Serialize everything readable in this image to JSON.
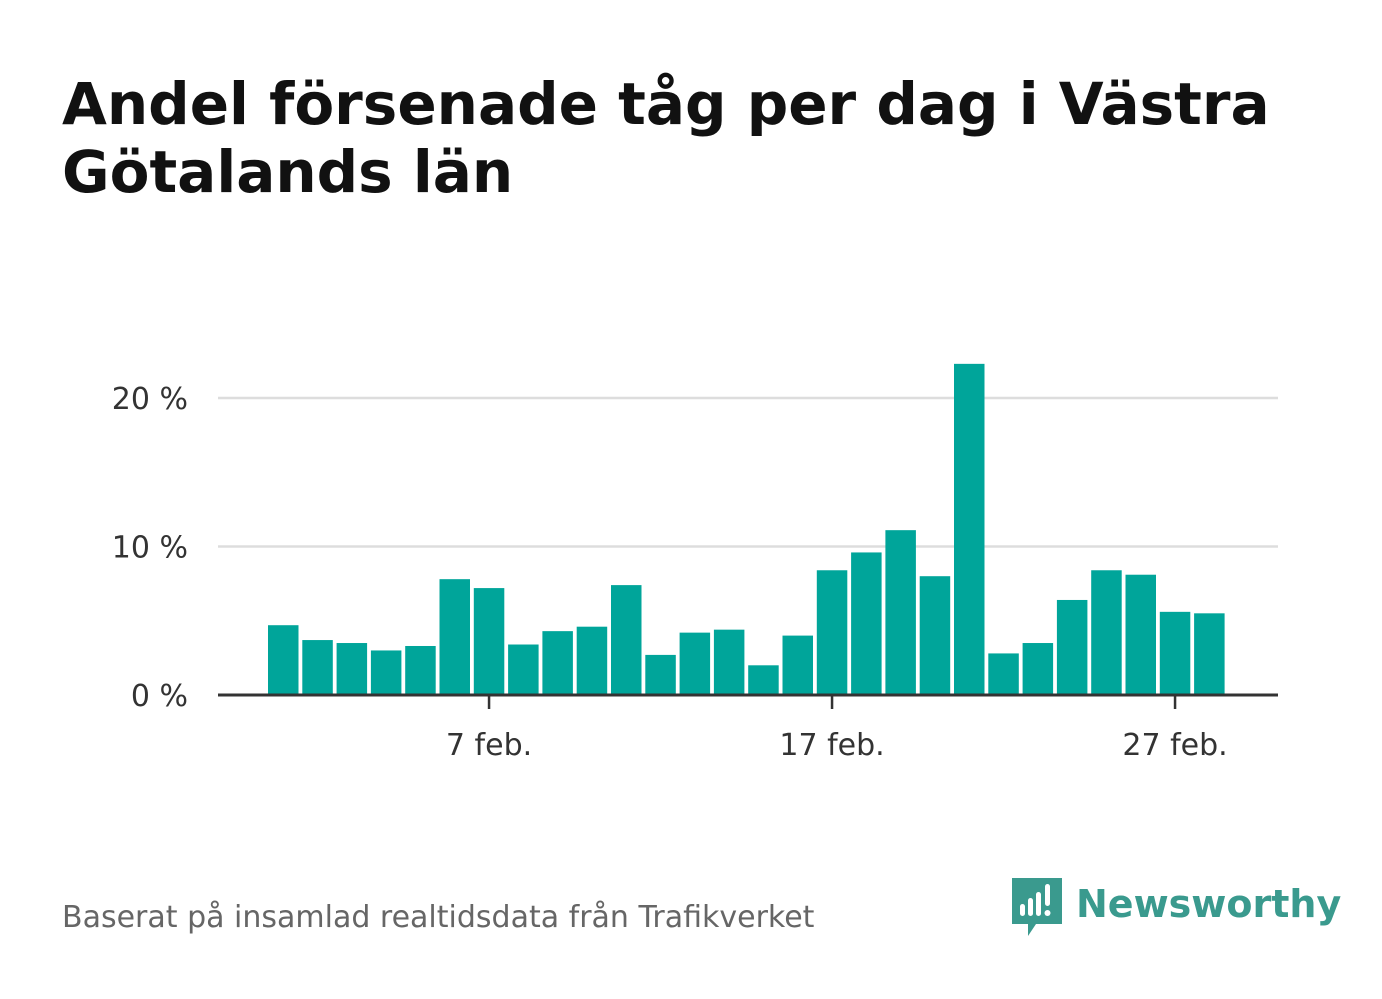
{
  "title": "Andel försenade tåg per dag i Västra Götalands län",
  "source": "Baserat på insamlad realtidsdata från Trafikverket",
  "brand": {
    "name": "Newsworthy",
    "color": "#3a9a8e",
    "icon": "chart-speech-bubble-icon"
  },
  "colors": {
    "bar": "#00a59a",
    "grid": "#dddddd",
    "axis": "#333333"
  },
  "chart_data": {
    "type": "bar",
    "x_start_day": 1,
    "month_label": "feb.",
    "categories": [
      "1 feb.",
      "2 feb.",
      "3 feb.",
      "4 feb.",
      "5 feb.",
      "6 feb.",
      "7 feb.",
      "8 feb.",
      "9 feb.",
      "10 feb.",
      "11 feb.",
      "12 feb.",
      "13 feb.",
      "14 feb.",
      "15 feb.",
      "16 feb.",
      "17 feb.",
      "18 feb.",
      "19 feb.",
      "20 feb.",
      "21 feb.",
      "22 feb.",
      "23 feb.",
      "24 feb.",
      "25 feb.",
      "26 feb.",
      "27 feb.",
      "28 feb."
    ],
    "values": [
      4.7,
      3.7,
      3.5,
      3.0,
      3.3,
      7.8,
      7.2,
      3.4,
      4.3,
      4.6,
      7.4,
      2.7,
      4.2,
      4.4,
      2.0,
      4.0,
      8.4,
      9.6,
      11.1,
      8.0,
      22.3,
      2.8,
      3.5,
      6.4,
      8.4,
      8.1,
      5.6,
      5.5
    ],
    "ylim": [
      0,
      24
    ],
    "y_ticks": [
      0,
      10,
      20
    ],
    "y_tick_labels": [
      "0 %",
      "10 %",
      "20 %"
    ],
    "x_ticks": [
      "7 feb.",
      "17 feb.",
      "27 feb."
    ],
    "x_tick_indices": [
      6,
      16,
      26
    ],
    "grid": true
  }
}
